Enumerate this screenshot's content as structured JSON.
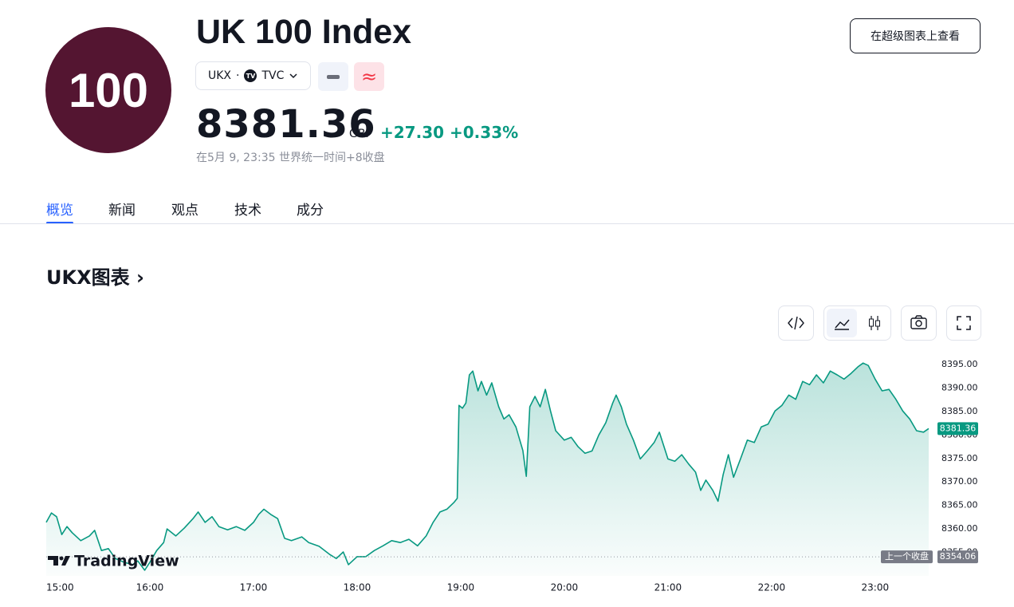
{
  "header": {
    "logo": "100",
    "title": "UK 100 Index",
    "symbol": "UKX",
    "exchange": "TVC",
    "price": "8381.36",
    "currency": "GBP",
    "change": "+27.30",
    "change_percent": "+0.33%",
    "status": "在5月 9, 23:35 世界统一时间+8收盘",
    "button": "在超级图表上查看"
  },
  "tabs": [
    "概览",
    "新闻",
    "观点",
    "技术",
    "成分"
  ],
  "section_title": "UKX图表",
  "chart_data": {
    "type": "area",
    "color": "#089981",
    "brand": "TradingView",
    "x": [
      "15:00",
      "15:03",
      "15:06",
      "15:09",
      "15:12",
      "15:15",
      "15:20",
      "15:25",
      "15:28",
      "15:32",
      "15:36",
      "15:40",
      "15:45",
      "15:50",
      "15:53",
      "15:57",
      "16:00",
      "16:04",
      "16:08",
      "16:10",
      "16:15",
      "16:20",
      "16:25",
      "16:28",
      "16:32",
      "16:36",
      "16:40",
      "16:45",
      "16:50",
      "16:55",
      "17:00",
      "17:03",
      "17:06",
      "17:10",
      "17:14",
      "17:18",
      "17:22",
      "17:28",
      "17:32",
      "17:38",
      "17:44",
      "17:48",
      "17:52",
      "17:55",
      "18:00",
      "18:05",
      "18:10",
      "18:15",
      "18:20",
      "18:25",
      "18:30",
      "18:35",
      "18:40",
      "18:44",
      "18:48",
      "18:52",
      "18:56",
      "18:58",
      "18:59",
      "19:01",
      "19:03",
      "19:05",
      "19:07",
      "19:10",
      "19:12",
      "19:15",
      "19:18",
      "19:22",
      "19:25",
      "19:28",
      "19:32",
      "19:36",
      "19:38",
      "19:40",
      "19:43",
      "19:46",
      "19:49",
      "19:52",
      "19:55",
      "20:00",
      "20:04",
      "20:08",
      "20:12",
      "20:16",
      "20:20",
      "20:24",
      "20:28",
      "20:30",
      "20:33",
      "20:36",
      "20:40",
      "20:44",
      "20:48",
      "20:52",
      "20:55",
      "21:00",
      "21:04",
      "21:08",
      "21:12",
      "21:16",
      "21:19",
      "21:22",
      "21:26",
      "21:29",
      "21:32",
      "21:35",
      "21:38",
      "21:42",
      "21:46",
      "21:50",
      "21:54",
      "21:58",
      "22:02",
      "22:06",
      "22:10",
      "22:14",
      "22:18",
      "22:22",
      "22:26",
      "22:30",
      "22:34",
      "22:38",
      "22:42",
      "22:46",
      "22:50",
      "22:53",
      "22:56",
      "23:00",
      "23:04",
      "23:08",
      "23:12",
      "23:16",
      "23:20",
      "23:24",
      "23:28",
      "23:31"
    ],
    "values": [
      8361.4,
      8363.4,
      8362.6,
      8358.8,
      8360.5,
      8359.2,
      8357.5,
      8358.5,
      8359.7,
      8355.4,
      8355.8,
      8353.7,
      8352.9,
      8352.4,
      8353.2,
      8351.2,
      8352.9,
      8355.4,
      8357.1,
      8360.0,
      8358.5,
      8360.2,
      8362.2,
      8363.6,
      8361.4,
      8362.6,
      8360.5,
      8359.8,
      8360.5,
      8359.7,
      8361.4,
      8363.1,
      8364.2,
      8363.1,
      8362.2,
      8358.0,
      8357.5,
      8358.3,
      8357.1,
      8356.3,
      8354.6,
      8353.7,
      8355.1,
      8352.4,
      8354.1,
      8354.1,
      8355.4,
      8356.4,
      8357.5,
      8357.1,
      8357.8,
      8356.4,
      8358.5,
      8361.4,
      8363.6,
      8364.2,
      8365.6,
      8366.5,
      8386.3,
      8385.7,
      8386.8,
      8392.8,
      8393.6,
      8389.4,
      8391.4,
      8388.5,
      8391.1,
      8386.0,
      8383.4,
      8384.3,
      8381.7,
      8376.7,
      8371.2,
      8386.0,
      8388.2,
      8386.0,
      8389.7,
      8385.1,
      8380.9,
      8378.9,
      8379.5,
      8377.5,
      8376.1,
      8376.6,
      8380.0,
      8382.6,
      8386.8,
      8388.5,
      8386.0,
      8382.3,
      8378.9,
      8374.9,
      8376.6,
      8378.4,
      8380.6,
      8374.9,
      8374.4,
      8375.8,
      8373.8,
      8372.1,
      8368.2,
      8370.4,
      8368.2,
      8365.9,
      8371.6,
      8375.8,
      8371.0,
      8374.9,
      8378.9,
      8378.4,
      8381.7,
      8382.3,
      8385.1,
      8386.3,
      8388.5,
      8387.6,
      8391.4,
      8390.7,
      8392.8,
      8391.1,
      8393.6,
      8392.8,
      8391.9,
      8393.1,
      8394.5,
      8395.3,
      8394.8,
      8391.9,
      8389.4,
      8389.7,
      8387.6,
      8385.1,
      8383.4,
      8380.9,
      8380.6,
      8381.36
    ],
    "xlim": [
      "15:00",
      "23:31"
    ],
    "xticks": [
      "15:00",
      "16:00",
      "17:00",
      "18:00",
      "19:00",
      "20:00",
      "21:00",
      "22:00",
      "23:00"
    ],
    "ylim": [
      8350,
      8397
    ],
    "yticks": [
      {
        "value": 8355,
        "label": "8355.00"
      },
      {
        "value": 8360,
        "label": "8360.00"
      },
      {
        "value": 8365,
        "label": "8365.00"
      },
      {
        "value": 8370,
        "label": "8370.00"
      },
      {
        "value": 8375,
        "label": "8375.00"
      },
      {
        "value": 8380,
        "label": "8380.00"
      },
      {
        "value": 8385,
        "label": "8385.00"
      },
      {
        "value": 8390,
        "label": "8390.00"
      },
      {
        "value": 8395,
        "label": "8395.00"
      }
    ],
    "last_value": 8381.36,
    "previous_close": {
      "label": "上一个收盘",
      "value": 8354.06
    }
  }
}
